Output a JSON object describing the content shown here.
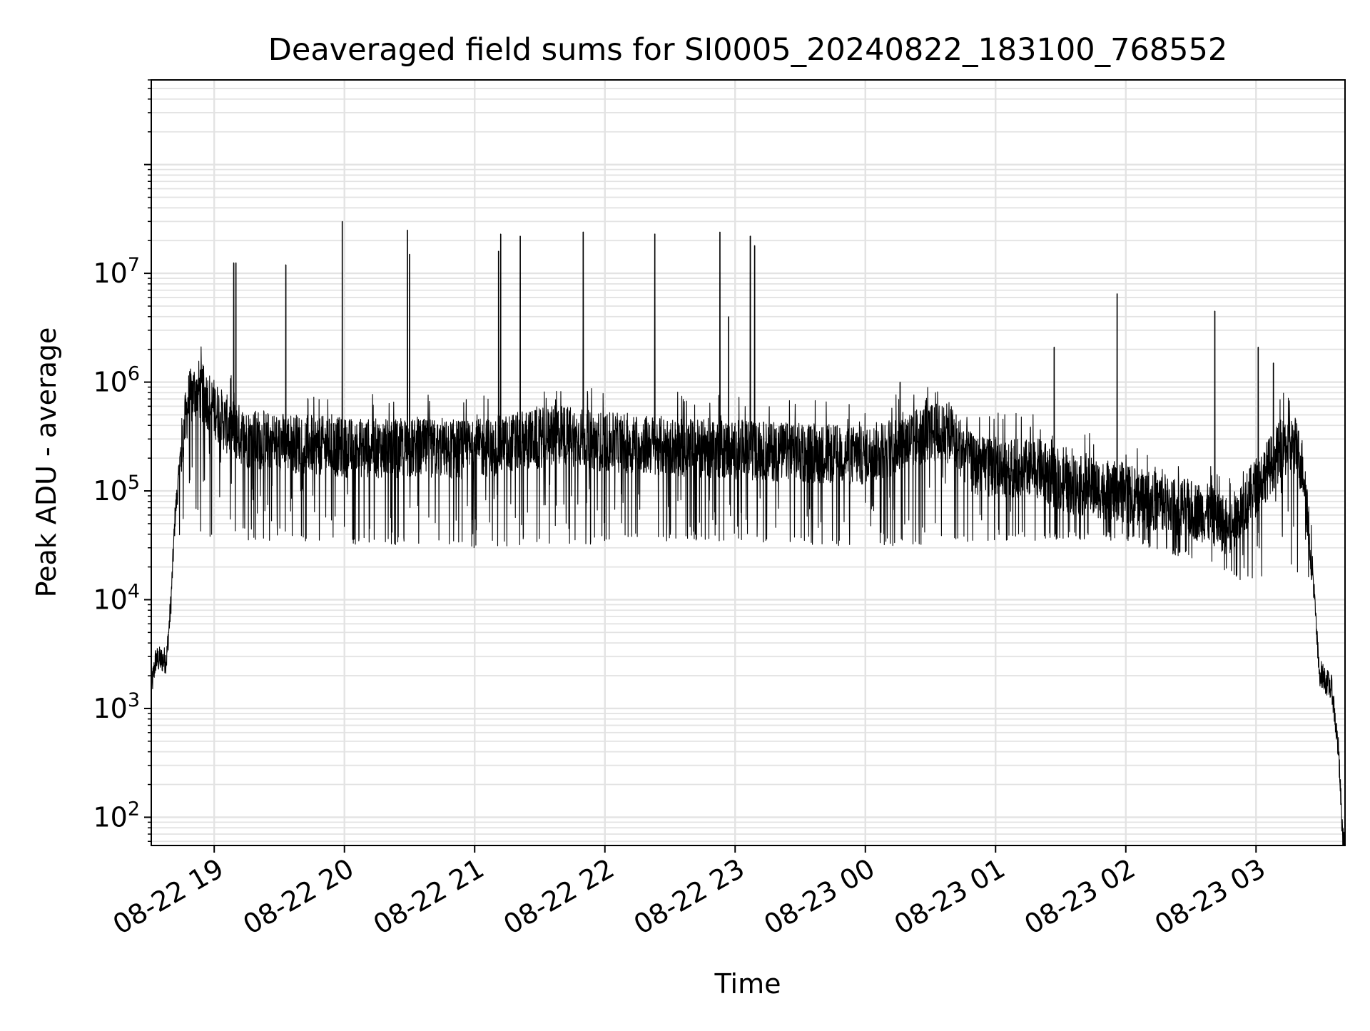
{
  "chart_data": {
    "type": "line",
    "title": "Deaveraged field sums for SI0005_20240822_183100_768552",
    "xlabel": "Time",
    "ylabel": "Peak ADU - average",
    "yscale": "log",
    "ylim": [
      55,
      600000000
    ],
    "xlim": [
      "2024-08-22 18:31",
      "2024-08-23 03:41"
    ],
    "grid": true,
    "x_ticks": [
      {
        "t": "2024-08-22 19:00",
        "label": "08-22 19"
      },
      {
        "t": "2024-08-22 20:00",
        "label": "08-22 20"
      },
      {
        "t": "2024-08-22 21:00",
        "label": "08-22 21"
      },
      {
        "t": "2024-08-22 22:00",
        "label": "08-22 22"
      },
      {
        "t": "2024-08-22 23:00",
        "label": "08-22 23"
      },
      {
        "t": "2024-08-23 00:00",
        "label": "08-23 00"
      },
      {
        "t": "2024-08-23 01:00",
        "label": "08-23 01"
      },
      {
        "t": "2024-08-23 02:00",
        "label": "08-23 02"
      },
      {
        "t": "2024-08-23 03:00",
        "label": "08-23 03"
      }
    ],
    "y_ticks": [
      {
        "value": 100,
        "base": "10",
        "exp": "2"
      },
      {
        "value": 1000,
        "base": "10",
        "exp": "3"
      },
      {
        "value": 10000,
        "base": "10",
        "exp": "4"
      },
      {
        "value": 100000,
        "base": "10",
        "exp": "5"
      },
      {
        "value": 1000000,
        "base": "10",
        "exp": "6"
      },
      {
        "value": 10000000,
        "base": "10",
        "exp": "7"
      }
    ],
    "series": [
      {
        "color": "#000000",
        "baseline": [
          {
            "t": "2024-08-22 18:31",
            "y": 1500
          },
          {
            "t": "2024-08-22 18:33",
            "y": 2800
          },
          {
            "t": "2024-08-22 18:38",
            "y": 2800
          },
          {
            "t": "2024-08-22 18:40",
            "y": 9000
          },
          {
            "t": "2024-08-22 18:42",
            "y": 60000
          },
          {
            "t": "2024-08-22 18:45",
            "y": 250000
          },
          {
            "t": "2024-08-22 18:48",
            "y": 650000
          },
          {
            "t": "2024-08-22 18:52",
            "y": 900000
          },
          {
            "t": "2024-08-22 18:58",
            "y": 650000
          },
          {
            "t": "2024-08-22 19:05",
            "y": 420000
          },
          {
            "t": "2024-08-22 19:15",
            "y": 300000
          },
          {
            "t": "2024-08-22 20:00",
            "y": 250000
          },
          {
            "t": "2024-08-22 21:00",
            "y": 240000
          },
          {
            "t": "2024-08-22 21:40",
            "y": 330000
          },
          {
            "t": "2024-08-22 22:00",
            "y": 280000
          },
          {
            "t": "2024-08-22 23:00",
            "y": 240000
          },
          {
            "t": "2024-08-23 00:00",
            "y": 210000
          },
          {
            "t": "2024-08-23 00:30",
            "y": 350000
          },
          {
            "t": "2024-08-23 00:40",
            "y": 330000
          },
          {
            "t": "2024-08-23 00:50",
            "y": 170000
          },
          {
            "t": "2024-08-23 01:20",
            "y": 160000
          },
          {
            "t": "2024-08-23 01:30",
            "y": 120000
          },
          {
            "t": "2024-08-23 02:00",
            "y": 95000
          },
          {
            "t": "2024-08-23 02:40",
            "y": 60000
          },
          {
            "t": "2024-08-23 02:48",
            "y": 45000
          },
          {
            "t": "2024-08-23 03:00",
            "y": 110000
          },
          {
            "t": "2024-08-23 03:12",
            "y": 250000
          },
          {
            "t": "2024-08-23 03:18",
            "y": 260000
          },
          {
            "t": "2024-08-23 03:22",
            "y": 150000
          },
          {
            "t": "2024-08-23 03:26",
            "y": 20000
          },
          {
            "t": "2024-08-23 03:29",
            "y": 2200
          },
          {
            "t": "2024-08-23 03:35",
            "y": 1500
          },
          {
            "t": "2024-08-23 03:38",
            "y": 400
          },
          {
            "t": "2024-08-23 03:40",
            "y": 60
          }
        ],
        "noise_floor": [
          {
            "t": "2024-08-22 19:00",
            "y": 35000
          },
          {
            "t": "2024-08-22 21:00",
            "y": 30000
          },
          {
            "t": "2024-08-22 23:00",
            "y": 35000
          },
          {
            "t": "2024-08-23 00:00",
            "y": 30000
          },
          {
            "t": "2024-08-23 01:00",
            "y": 35000
          },
          {
            "t": "2024-08-23 02:00",
            "y": 35000
          },
          {
            "t": "2024-08-23 02:40",
            "y": 20000
          },
          {
            "t": "2024-08-23 02:52",
            "y": 15000
          }
        ],
        "spikes": [
          {
            "t": "2024-08-22 19:09",
            "y": 12500000
          },
          {
            "t": "2024-08-22 19:10",
            "y": 12500000
          },
          {
            "t": "2024-08-22 19:33",
            "y": 12000000
          },
          {
            "t": "2024-08-22 19:59",
            "y": 30000000
          },
          {
            "t": "2024-08-22 20:29",
            "y": 25000000
          },
          {
            "t": "2024-08-22 20:30",
            "y": 15000000
          },
          {
            "t": "2024-08-22 21:11",
            "y": 16000000
          },
          {
            "t": "2024-08-22 21:12",
            "y": 23000000
          },
          {
            "t": "2024-08-22 21:21",
            "y": 22000000
          },
          {
            "t": "2024-08-22 21:50",
            "y": 24000000
          },
          {
            "t": "2024-08-22 22:23",
            "y": 23000000
          },
          {
            "t": "2024-08-22 22:53",
            "y": 24000000
          },
          {
            "t": "2024-08-22 22:57",
            "y": 4000000
          },
          {
            "t": "2024-08-22 23:07",
            "y": 22000000
          },
          {
            "t": "2024-08-22 23:09",
            "y": 18000000
          },
          {
            "t": "2024-08-23 00:16",
            "y": 1000000
          },
          {
            "t": "2024-08-23 01:27",
            "y": 2100000
          },
          {
            "t": "2024-08-23 01:56",
            "y": 6500000
          },
          {
            "t": "2024-08-23 02:41",
            "y": 4500000
          },
          {
            "t": "2024-08-23 03:01",
            "y": 2100000
          },
          {
            "t": "2024-08-23 03:08",
            "y": 1500000
          }
        ]
      }
    ]
  }
}
